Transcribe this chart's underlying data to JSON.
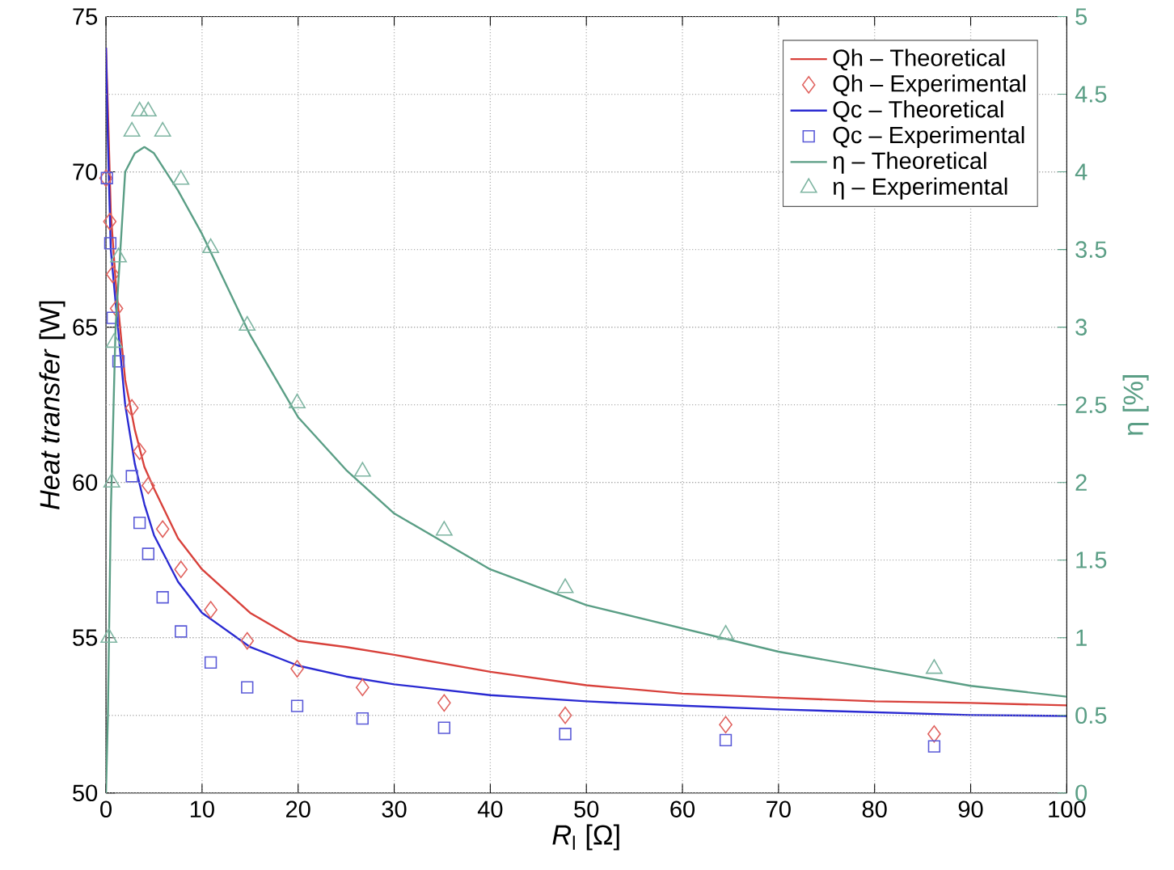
{
  "chart_data": {
    "type": "line",
    "xlabel": "*R*$_{l}$ [Ω]",
    "ylabel": "*Heat transfer* [W]",
    "y2label": "η [%]",
    "xlim": [
      0,
      100
    ],
    "xticks": [
      0,
      10,
      20,
      30,
      40,
      50,
      60,
      70,
      80,
      90,
      100
    ],
    "ylim": [
      50,
      75
    ],
    "yticks": [
      50,
      55,
      60,
      65,
      70,
      75
    ],
    "y2lim": [
      0,
      5
    ],
    "y2ticks": [
      0,
      0.5,
      1,
      1.5,
      2,
      2.5,
      3,
      3.5,
      4,
      4.5,
      5
    ],
    "grid": true,
    "legend": "top right",
    "series": [
      {
        "name": "Qh – Theoretical",
        "marker": "none",
        "color": "#d8413b",
        "x": [
          0,
          0.2,
          0.5,
          1,
          2,
          3,
          4,
          5,
          7.5,
          10,
          15,
          20,
          25,
          30,
          40,
          50,
          60,
          70,
          80,
          90,
          100
        ],
        "values": [
          74,
          72,
          68.7,
          66.5,
          63.3,
          61.7,
          60.5,
          59.8,
          58.2,
          57.2,
          55.8,
          54.9,
          54.7,
          54.45,
          53.9,
          53.47,
          53.2,
          53.07,
          52.95,
          52.9,
          52.82
        ]
      },
      {
        "name": "Qh – Experimental",
        "type": "scatter",
        "marker": "diamond",
        "color": "#e0625e",
        "x": [
          0,
          0.4,
          0.7,
          1.1,
          2.7,
          3.5,
          4.4,
          5.9,
          7.8,
          10.9,
          14.7,
          19.9,
          26.7,
          35.2,
          47.8,
          64.5,
          86.2
        ],
        "values": [
          69.8,
          68.4,
          66.7,
          65.6,
          62.4,
          61.0,
          59.9,
          58.5,
          57.2,
          55.9,
          54.9,
          54.0,
          53.4,
          52.9,
          52.5,
          52.2,
          51.9
        ]
      },
      {
        "name": "Qc – Theoretical",
        "marker": "none",
        "color": "#2a2ad2",
        "x": [
          0,
          0.2,
          0.5,
          1,
          2,
          3,
          4,
          5,
          7.5,
          10,
          15,
          20,
          25,
          30,
          40,
          50,
          60,
          70,
          80,
          90,
          100
        ],
        "values": [
          74,
          71,
          67.5,
          65.8,
          62.5,
          60.6,
          59.3,
          58.3,
          56.8,
          55.8,
          54.7,
          54.1,
          53.75,
          53.5,
          53.15,
          52.95,
          52.81,
          52.69,
          52.6,
          52.51,
          52.48
        ]
      },
      {
        "name": "Qc – Experimental",
        "type": "scatter",
        "marker": "square",
        "color": "#5a5ad8",
        "x": [
          0.1,
          0.45,
          0.7,
          1.3,
          2.7,
          3.5,
          4.4,
          5.9,
          7.8,
          10.9,
          14.7,
          19.9,
          26.7,
          35.2,
          47.8,
          64.5,
          86.2
        ],
        "values": [
          69.8,
          67.7,
          65.3,
          63.9,
          60.2,
          58.7,
          57.7,
          56.3,
          55.2,
          54.2,
          53.4,
          52.8,
          52.4,
          52.1,
          51.9,
          51.7,
          51.5
        ]
      },
      {
        "name": "η – Theoretical",
        "marker": "none",
        "axis": "y2",
        "color": "#5a9e85",
        "x": [
          0,
          0.2,
          0.5,
          1,
          2,
          3,
          4,
          5,
          7.5,
          10,
          15,
          20,
          25,
          30,
          40,
          50,
          60,
          70,
          80,
          90,
          100
        ],
        "values": [
          0,
          0.5,
          1.8,
          3.0,
          4.0,
          4.12,
          4.16,
          4.12,
          3.88,
          3.6,
          2.95,
          2.42,
          2.08,
          1.8,
          1.44,
          1.21,
          1.06,
          0.91,
          0.8,
          0.69,
          0.62
        ]
      },
      {
        "name": "η – Experimental",
        "type": "scatter",
        "marker": "triangle",
        "axis": "y2",
        "color": "#7fb5a2",
        "x": [
          0.3,
          0.6,
          0.85,
          1.3,
          2.7,
          3.5,
          4.4,
          5.9,
          7.8,
          10.9,
          14.7,
          19.9,
          26.7,
          35.2,
          47.8,
          64.5,
          86.2
        ],
        "values": [
          1.0,
          2.0,
          2.9,
          3.45,
          4.26,
          4.39,
          4.39,
          4.26,
          3.95,
          3.51,
          3.01,
          2.51,
          2.07,
          1.69,
          1.32,
          1.02,
          0.8
        ]
      }
    ]
  }
}
